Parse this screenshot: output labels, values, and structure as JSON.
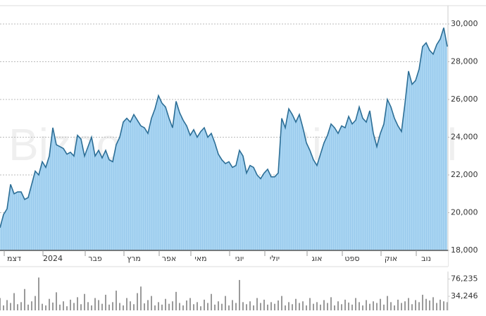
{
  "watermark": "Bizportal",
  "chart_data": [
    {
      "type": "area",
      "color": "#2c6e96",
      "fill": "#a9d5f2",
      "grid": true,
      "ylim": [
        18000,
        30970
      ],
      "yticks": [
        {
          "value": 18000,
          "label": "18,000"
        },
        {
          "value": 20000,
          "label": "20,000"
        },
        {
          "value": 22000,
          "label": "22,000"
        },
        {
          "value": 24000,
          "label": "24,000"
        },
        {
          "value": 26000,
          "label": "26,000"
        },
        {
          "value": 28000,
          "label": "28,000"
        },
        {
          "value": 30000,
          "label": "30,000"
        }
      ],
      "xticks": [
        {
          "value": 4,
          "label": "דצמ"
        },
        {
          "value": 15,
          "label": "2024"
        },
        {
          "value": 27,
          "label": "פבר"
        },
        {
          "value": 38,
          "label": "מרץ"
        },
        {
          "value": 48,
          "label": "אפר"
        },
        {
          "value": 57,
          "label": "מאי"
        },
        {
          "value": 68,
          "label": "יוני"
        },
        {
          "value": 78,
          "label": "יולי"
        },
        {
          "value": 90,
          "label": "אוג"
        },
        {
          "value": 100,
          "label": "ספט"
        },
        {
          "value": 111,
          "label": "אוק"
        },
        {
          "value": 121,
          "label": "נוב"
        }
      ],
      "values": [
        19200,
        19900,
        20200,
        21500,
        21000,
        21100,
        21100,
        20700,
        20800,
        21500,
        22200,
        22000,
        22700,
        22400,
        23000,
        24500,
        23600,
        23500,
        23400,
        23100,
        23200,
        23000,
        24100,
        23900,
        23000,
        23500,
        24000,
        23000,
        23300,
        22900,
        23300,
        22800,
        22700,
        23600,
        24000,
        24800,
        25000,
        24800,
        25200,
        24900,
        24600,
        24500,
        24200,
        25000,
        25500,
        26200,
        25800,
        25600,
        25000,
        24500,
        25900,
        25300,
        24900,
        24600,
        24100,
        24400,
        24000,
        24300,
        24500,
        24000,
        24200,
        23700,
        23100,
        22800,
        22600,
        22700,
        22400,
        22500,
        23300,
        23000,
        22100,
        22500,
        22400,
        22000,
        21800,
        22100,
        22300,
        21900,
        21900,
        22100,
        25000,
        24500,
        25500,
        25200,
        24800,
        25200,
        24500,
        23700,
        23300,
        22800,
        22500,
        23100,
        23700,
        24100,
        24700,
        24500,
        24200,
        24600,
        24500,
        25100,
        24700,
        24900,
        25600,
        25000,
        24800,
        25400,
        24200,
        23500,
        24200,
        24700,
        26000,
        25600,
        25000,
        24600,
        24300,
        25800,
        27500,
        26800,
        27000,
        27600,
        28800,
        29000,
        28600,
        28400,
        28900,
        29200,
        29800,
        28800
      ]
    },
    {
      "type": "bar",
      "color": "#9a9a9a",
      "ylim": [
        0,
        94500
      ],
      "yticks": [
        {
          "value": 76235,
          "label": "76,235"
        },
        {
          "value": 34246,
          "label": "34,246"
        }
      ],
      "values": [
        30000,
        12000,
        25000,
        18000,
        42000,
        15000,
        20000,
        52000,
        14000,
        22000,
        35000,
        80000,
        16000,
        12000,
        28000,
        19000,
        44000,
        14000,
        22000,
        10000,
        26000,
        18000,
        32000,
        15000,
        40000,
        20000,
        12000,
        30000,
        25000,
        16000,
        38000,
        14000,
        20000,
        48000,
        18000,
        12000,
        30000,
        22000,
        15000,
        42000,
        58000,
        17000,
        25000,
        35000,
        12000,
        20000,
        14000,
        28000,
        16000,
        22000,
        45000,
        18000,
        12000,
        24000,
        30000,
        15000,
        20000,
        10000,
        26000,
        18000,
        40000,
        14000,
        22000,
        16000,
        35000,
        12000,
        25000,
        18000,
        74000,
        20000,
        15000,
        22000,
        12000,
        30000,
        18000,
        26000,
        14000,
        20000,
        16000,
        24000,
        35000,
        12000,
        20000,
        15000,
        28000,
        18000,
        22000,
        12000,
        30000,
        16000,
        20000,
        14000,
        25000,
        18000,
        32000,
        12000,
        22000,
        15000,
        26000,
        19000,
        14000,
        30000,
        20000,
        12000,
        25000,
        16000,
        22000,
        18000,
        28000,
        14000,
        35000,
        20000,
        12000,
        26000,
        18000,
        22000,
        30000,
        15000,
        25000,
        20000,
        38000,
        28000,
        24000,
        32000,
        18000,
        26000,
        22000,
        20000
      ]
    }
  ]
}
